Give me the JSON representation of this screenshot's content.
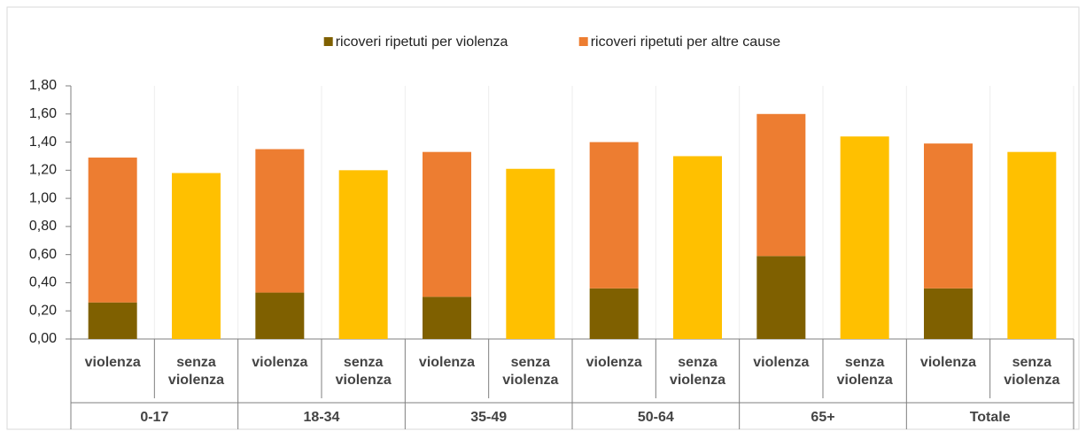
{
  "chart_data": {
    "type": "bar",
    "stacked": true,
    "categories": [
      "violenza",
      "senza violenza",
      "violenza",
      "senza violenza",
      "violenza",
      "senza violenza",
      "violenza",
      "senza violenza",
      "violenza",
      "senza violenza",
      "violenza",
      "senza violenza"
    ],
    "groups": [
      "0-17",
      "18-34",
      "35-49",
      "50-64",
      "65+",
      "Totale"
    ],
    "series": [
      {
        "name": "ricoveri ripetuti per violenza",
        "color": "#7f6000",
        "values": [
          0.26,
          null,
          0.33,
          null,
          0.3,
          null,
          0.36,
          null,
          0.59,
          null,
          0.36,
          null
        ]
      },
      {
        "name": "ricoveri ripetuti per altre cause",
        "color": "#ed7d31",
        "values": [
          1.03,
          null,
          1.02,
          null,
          1.03,
          null,
          1.04,
          null,
          1.01,
          null,
          1.03,
          null
        ]
      },
      {
        "color": "#ffc000",
        "values": [
          null,
          1.18,
          null,
          1.2,
          null,
          1.21,
          null,
          1.3,
          null,
          1.44,
          null,
          1.33
        ]
      }
    ],
    "ylim": [
      0,
      1.8
    ],
    "yticks": [
      {
        "value": 0,
        "label": "0,00"
      },
      {
        "value": 0.2,
        "label": "0,20"
      },
      {
        "value": 0.4,
        "label": "0,40"
      },
      {
        "value": 0.6,
        "label": "0,60"
      },
      {
        "value": 0.8,
        "label": "0,80"
      },
      {
        "value": 1.0,
        "label": "1,00"
      },
      {
        "value": 1.2,
        "label": "1,20"
      },
      {
        "value": 1.4,
        "label": "1,40"
      },
      {
        "value": 1.6,
        "label": "1,60"
      },
      {
        "value": 1.8,
        "label": "1,80"
      }
    ],
    "grid": true,
    "legend": "top"
  }
}
